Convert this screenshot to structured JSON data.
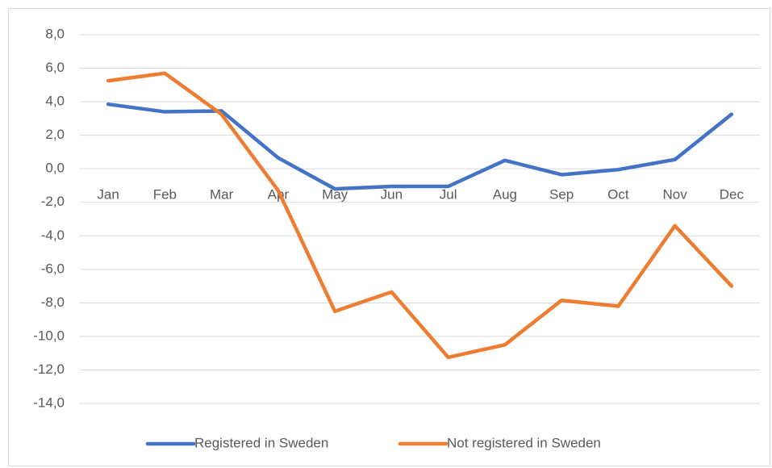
{
  "chart_data": {
    "type": "line",
    "categories": [
      "Jan",
      "Feb",
      "Mar",
      "Apr",
      "May",
      "Jun",
      "Jul",
      "Aug",
      "Sep",
      "Oct",
      "Nov",
      "Dec"
    ],
    "series": [
      {
        "name": "Registered in Sweden",
        "color": "#4472c4",
        "values": [
          3.85,
          3.4,
          3.45,
          0.65,
          -1.2,
          -1.05,
          -1.05,
          0.5,
          -0.35,
          -0.05,
          0.55,
          3.25
        ]
      },
      {
        "name": "Not registered in Sweden",
        "color": "#ed7d31",
        "values": [
          5.25,
          5.7,
          3.25,
          -1.3,
          -8.5,
          -7.35,
          -11.25,
          -10.5,
          -7.85,
          -8.2,
          -3.4,
          -7.0
        ]
      }
    ],
    "ylim": [
      -14,
      8
    ],
    "yticks": [
      {
        "value": -14,
        "label": "-14,0"
      },
      {
        "value": -12,
        "label": "-12,0"
      },
      {
        "value": -10,
        "label": "-10,0"
      },
      {
        "value": -8,
        "label": "-8,0"
      },
      {
        "value": -6,
        "label": "-6,0"
      },
      {
        "value": -4,
        "label": "-4,0"
      },
      {
        "value": -2,
        "label": "-2,0"
      },
      {
        "value": 0,
        "label": "0,0"
      },
      {
        "value": 2,
        "label": "2,0"
      },
      {
        "value": 4,
        "label": "4,0"
      },
      {
        "value": 6,
        "label": "6,0"
      },
      {
        "value": 8,
        "label": "8,0"
      }
    ],
    "grid": true,
    "legend": "bottom"
  }
}
